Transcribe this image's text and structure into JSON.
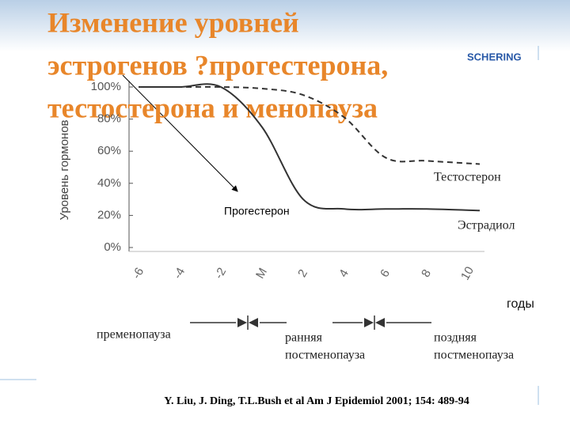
{
  "chart_data": {
    "type": "line",
    "title": [
      "Изменение уровней",
      "эстрогенов ?прогестерона,",
      "тестостерона и менопауза"
    ],
    "logo": "SCHERING",
    "y_label": "Уровень гормонов",
    "x_label": "годы",
    "categories": [
      "-6",
      "-4",
      "-2",
      "M",
      "2",
      "4",
      "6",
      "8",
      "10"
    ],
    "series": [
      {
        "name": "Эстрадиол",
        "color": "#333333",
        "dash": false,
        "values": [
          100,
          100,
          100,
          75,
          30,
          24,
          24,
          24,
          23
        ]
      },
      {
        "name": "Тестостерон",
        "color": "#333333",
        "dash": true,
        "values": [
          100,
          100,
          100,
          99,
          95,
          81,
          56,
          54,
          52
        ]
      }
    ],
    "ylim": [
      0,
      100
    ],
    "yticks": [
      {
        "value": 0,
        "label": "0%"
      },
      {
        "value": 20,
        "label": "20%"
      },
      {
        "value": 40,
        "label": "40%"
      },
      {
        "value": 60,
        "label": "60%"
      },
      {
        "value": 80,
        "label": "80%"
      },
      {
        "value": 100,
        "label": "100%"
      }
    ],
    "grid": false,
    "annotation": "Прогестерон",
    "phases": [
      [
        "пременопауза"
      ],
      [
        "ранняя",
        "постменопауза"
      ],
      [
        "поздняя",
        "постменопауза"
      ]
    ],
    "citation": "Y. Liu, J. Ding, T.L.Bush et al Am J Epidemiol 2001; 154: 489-94"
  }
}
